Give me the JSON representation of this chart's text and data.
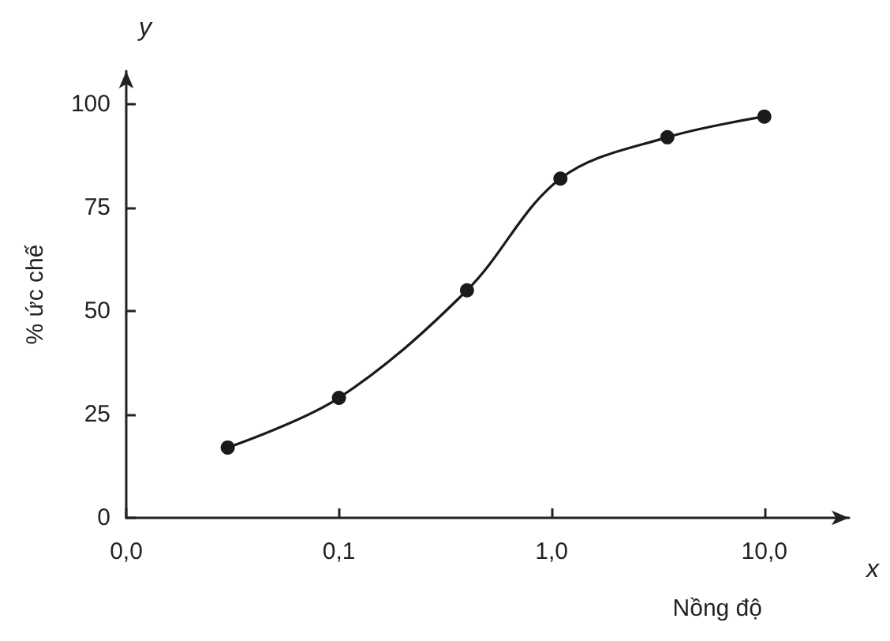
{
  "chart_data": {
    "type": "line",
    "xlabel": "Nồng độ",
    "ylabel": "% ức chế",
    "annotations": [
      "y",
      "x"
    ],
    "x": [
      0.03,
      0.1,
      0.4,
      1.1,
      3.5,
      10
    ],
    "series": [
      {
        "color": "#1a1a1a",
        "values": [
          17,
          29,
          55,
          82,
          92,
          97
        ]
      }
    ],
    "log": "x",
    "xlim": [
      0.01,
      25
    ],
    "xticks": [
      {
        "value": 0.01,
        "label": "0,0"
      },
      {
        "value": 0.1,
        "label": "0,1"
      },
      {
        "value": 1,
        "label": "1,0"
      },
      {
        "value": 10,
        "label": "10,0"
      }
    ],
    "ylim": [
      0,
      108
    ],
    "yticks": [
      0,
      25,
      50,
      75,
      100
    ],
    "grid": false,
    "marker": "circle",
    "line_style": "solid"
  }
}
